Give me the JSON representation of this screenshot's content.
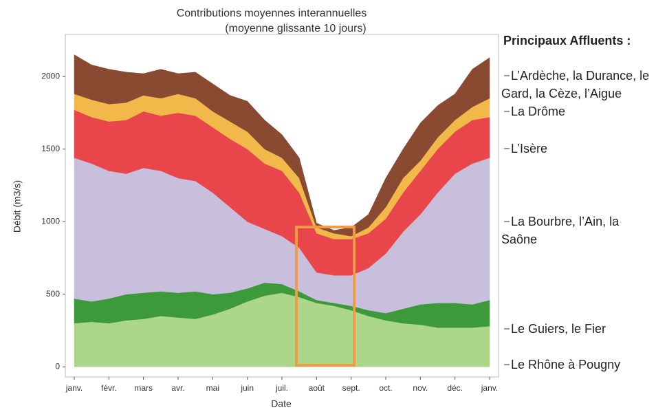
{
  "chart_data": {
    "type": "stacked_area",
    "title": "Contributions moyennes interannuelles",
    "subtitle": "(moyenne glissante 10 jours)",
    "x_label": "Date",
    "y_label": "Débit (m3/s)",
    "legend_title": "Principaux Affluents :",
    "categories": [
      "janv.",
      null,
      "févr.",
      null,
      "mars",
      null,
      "avr.",
      null,
      "mai",
      null,
      "juin",
      null,
      "juil.",
      null,
      "août",
      null,
      "sept.",
      null,
      "oct.",
      null,
      "nov.",
      null,
      "déc.",
      null,
      "janv."
    ],
    "ylim": [
      -70,
      2290
    ],
    "yticks": [
      0,
      500,
      1000,
      1500,
      2000
    ],
    "grid": false,
    "series": [
      {
        "name": "Le Rhône à Pougny",
        "color": "#acd68a",
        "values": [
          300,
          310,
          300,
          320,
          330,
          350,
          340,
          330,
          360,
          400,
          450,
          490,
          510,
          480,
          440,
          420,
          390,
          350,
          320,
          300,
          290,
          270,
          270,
          270,
          280
        ]
      },
      {
        "name": "Le Guiers, le Fier",
        "color": "#3c9a3a",
        "values": [
          170,
          140,
          170,
          180,
          180,
          170,
          170,
          190,
          140,
          110,
          90,
          90,
          60,
          40,
          20,
          20,
          30,
          40,
          50,
          100,
          140,
          170,
          170,
          160,
          180
        ]
      },
      {
        "name": "La Bourbre, l’Ain, la Saône",
        "color": "#c8bfdd",
        "values": [
          970,
          950,
          880,
          830,
          860,
          830,
          790,
          760,
          700,
          590,
          460,
          370,
          330,
          300,
          190,
          190,
          210,
          290,
          410,
          530,
          620,
          760,
          890,
          970,
          980
        ]
      },
      {
        "name": "L’Isère",
        "color": "#e8464a",
        "values": [
          330,
          320,
          340,
          370,
          390,
          380,
          450,
          450,
          450,
          470,
          500,
          450,
          450,
          380,
          270,
          250,
          250,
          240,
          240,
          270,
          300,
          300,
          290,
          300,
          280
        ]
      },
      {
        "name": "La Drôme",
        "color": "#f2b84a",
        "values": [
          110,
          120,
          120,
          120,
          110,
          120,
          130,
          120,
          110,
          120,
          120,
          100,
          90,
          100,
          40,
          40,
          20,
          40,
          80,
          100,
          70,
          80,
          80,
          90,
          130
        ]
      },
      {
        "name": "L’Ardèche, la Durance, le Gard, la Cèze, l’Aigue",
        "color": "#8a4a32",
        "values": [
          270,
          240,
          240,
          210,
          150,
          200,
          140,
          180,
          190,
          180,
          210,
          200,
          160,
          140,
          30,
          20,
          60,
          90,
          200,
          200,
          260,
          220,
          180,
          260,
          280
        ]
      }
    ]
  }
}
